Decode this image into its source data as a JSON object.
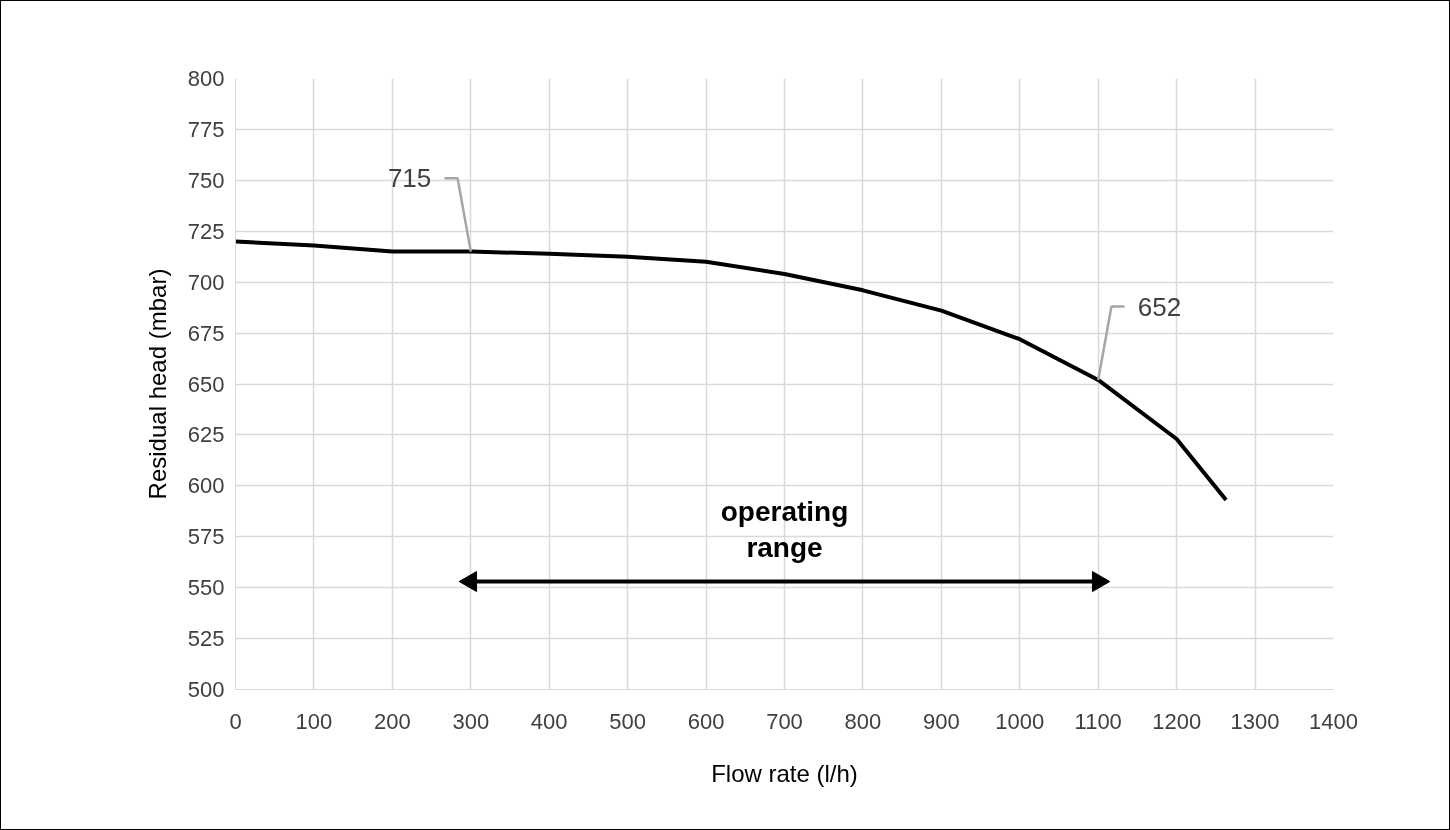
{
  "chart_data": {
    "type": "line",
    "xlabel": "Flow rate (l/h)",
    "ylabel": "Residual head (mbar)",
    "x": [
      0,
      100,
      200,
      300,
      400,
      500,
      600,
      700,
      800,
      900,
      1000,
      1100,
      1200,
      1263
    ],
    "series": [
      {
        "color": "#000000",
        "values": [
          720,
          718,
          715,
          715,
          714,
          712.5,
          710,
          704,
          696,
          686,
          672,
          652,
          623,
          593
        ]
      },
      {
        "name": "operating range",
        "color": "#000000",
        "x": [
          300,
          1100
        ],
        "values": [
          553,
          553
        ],
        "marker": "triangle"
      }
    ],
    "xlim": [
      0,
      1400
    ],
    "xticks": [
      0,
      100,
      200,
      300,
      400,
      500,
      600,
      700,
      800,
      900,
      1000,
      1100,
      1200,
      1300,
      1400
    ],
    "ylim": [
      500,
      800
    ],
    "yticks": [
      500,
      525,
      550,
      575,
      600,
      625,
      650,
      675,
      700,
      725,
      750,
      775,
      800
    ],
    "grid": true,
    "marker": "none",
    "line_style": "solid",
    "legend": false,
    "annotations": [
      {
        "text": "715",
        "x": 300,
        "y": 715
      },
      {
        "text": "652",
        "x": 1100,
        "y": 652
      }
    ]
  }
}
